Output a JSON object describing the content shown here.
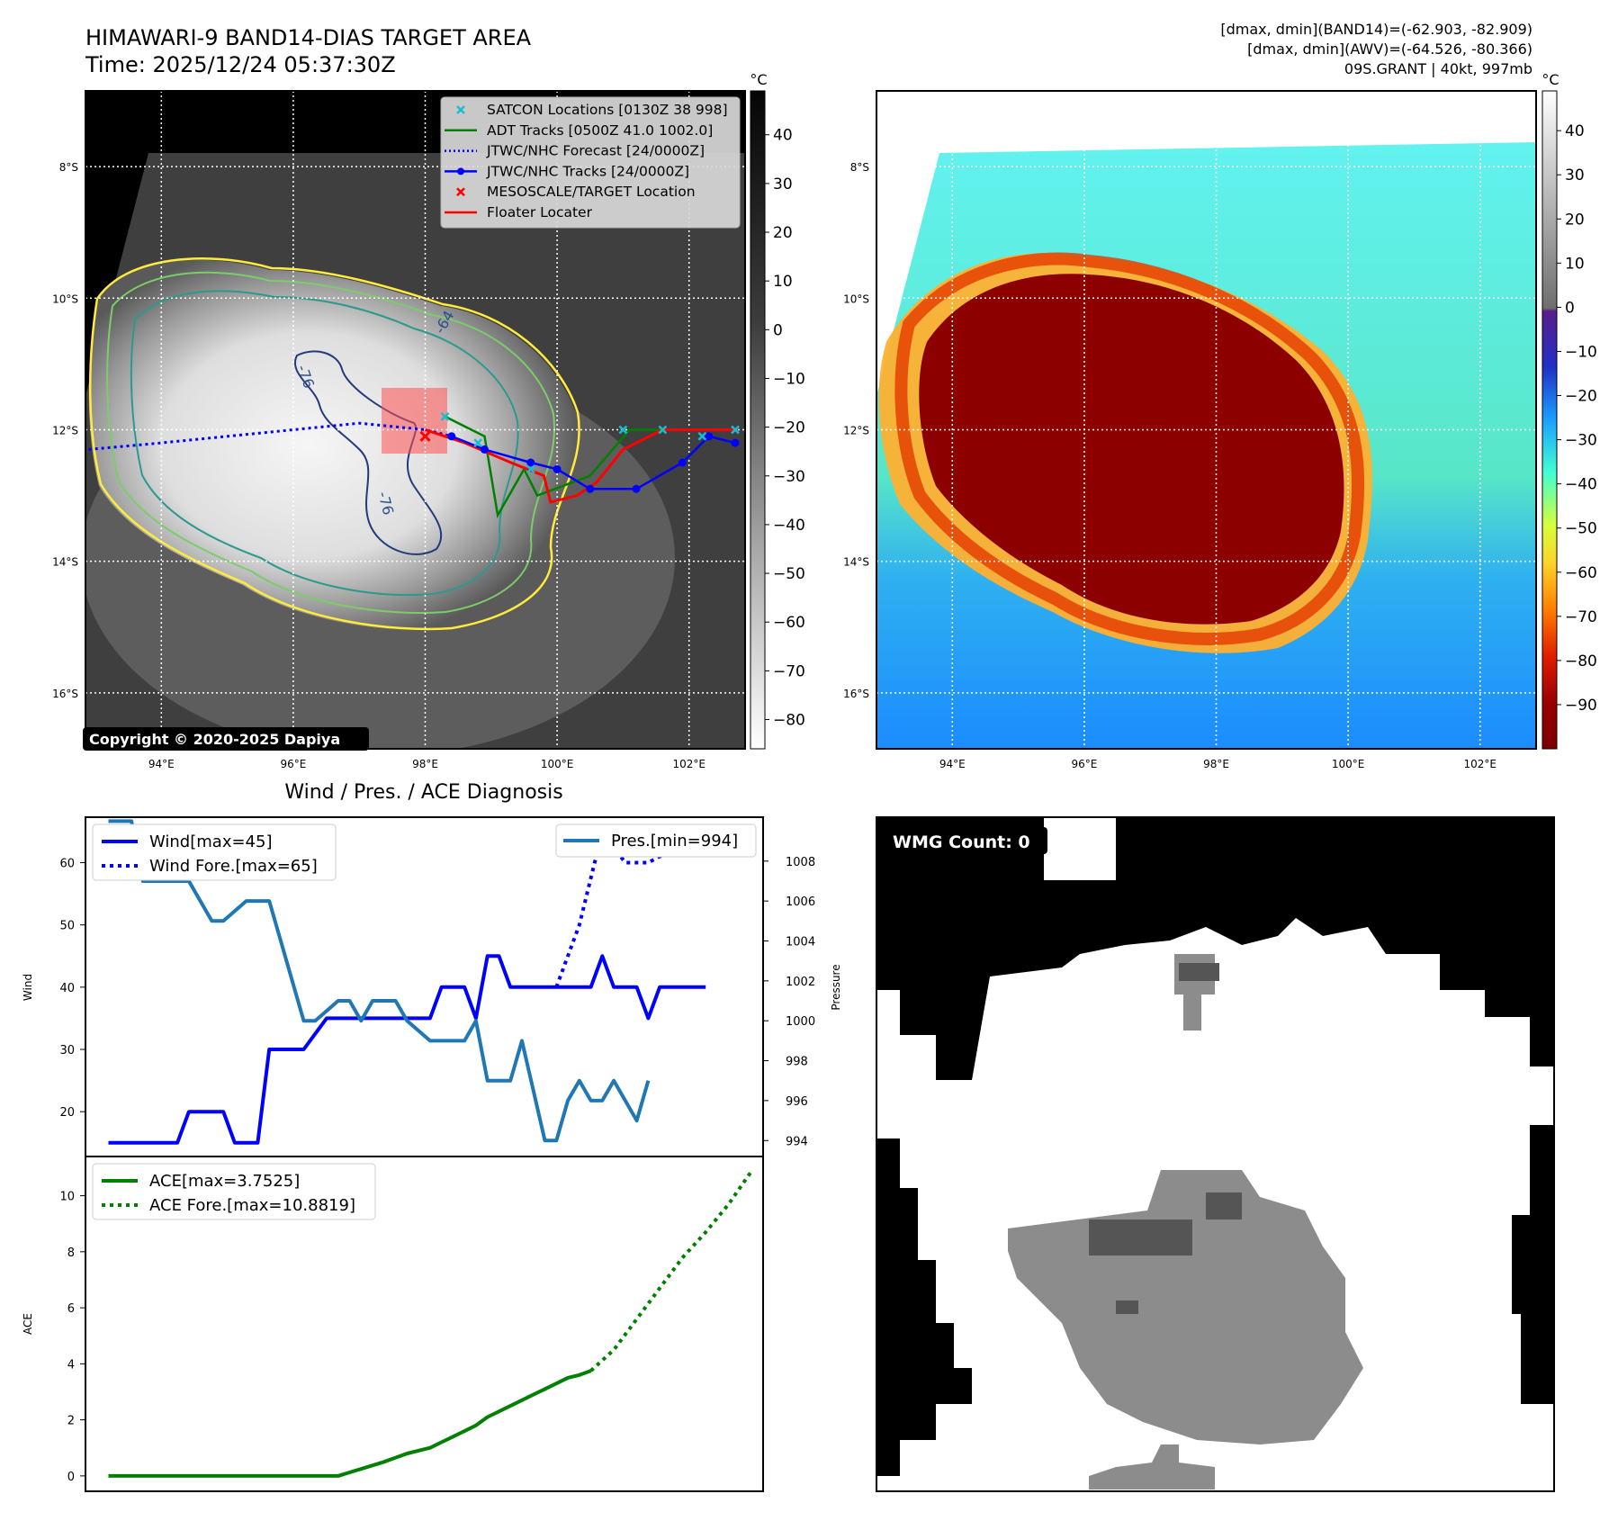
{
  "header": {
    "title": "HIMAWARI-9 BAND14-DIAS TARGET AREA",
    "time": "Time: 2025/12/24 05:37:30Z",
    "stat1": "[dmax, dmin](BAND14)=(-62.903, -82.909)",
    "stat2": "[dmax, dmin](AWV)=(-64.526, -80.366)",
    "storm": "09S.GRANT | 40kt, 997mb"
  },
  "copyright": "Copyright © 2020-2025 Dapiya",
  "map": {
    "lat_labels": [
      "8°S",
      "10°S",
      "12°S",
      "14°S",
      "16°S"
    ],
    "lon_labels": [
      "94°E",
      "96°E",
      "98°E",
      "100°E",
      "102°E"
    ],
    "lat_values": [
      -8,
      -10,
      -12,
      -14,
      -16
    ],
    "lon_values": [
      94,
      96,
      98,
      100,
      102
    ],
    "lon_range": [
      92.85,
      102.85
    ],
    "lat_range": [
      -6.85,
      -16.85
    ],
    "contour_labels": [
      "-64",
      "-76",
      "-76"
    ]
  },
  "legend": {
    "entries": [
      {
        "label": "SATCON Locations [0130Z 38 998]",
        "color": "#17becf",
        "marker": "x"
      },
      {
        "label": "ADT Tracks [0500Z 41.0 1002.0]",
        "color": "#008000",
        "marker": "line"
      },
      {
        "label": "JTWC/NHC Forecast [24/0000Z]",
        "color": "#0000ff",
        "marker": "dotted"
      },
      {
        "label": "JTWC/NHC Tracks [24/0000Z]",
        "color": "#0000ff",
        "marker": "line-dot"
      },
      {
        "label": "MESOSCALE/TARGET Location",
        "color": "#ff0000",
        "marker": "x"
      },
      {
        "label": "Floater Locater",
        "color": "#ff0000",
        "marker": "line"
      }
    ]
  },
  "colorbar1": {
    "unit": "°C",
    "ticks": [
      "40",
      "30",
      "20",
      "10",
      "0",
      "−10",
      "−20",
      "−30",
      "−40",
      "−50",
      "−60",
      "−70",
      "−80"
    ],
    "tick_values": [
      40,
      30,
      20,
      10,
      0,
      -10,
      -20,
      -30,
      -40,
      -50,
      -60,
      -70,
      -80
    ],
    "range": [
      49,
      -86
    ]
  },
  "colorbar2": {
    "unit": "°C",
    "ticks": [
      "40",
      "30",
      "20",
      "10",
      "0",
      "−10",
      "−20",
      "−30",
      "−40",
      "−50",
      "−60",
      "−70",
      "−80",
      "−90"
    ],
    "tick_values": [
      40,
      30,
      20,
      10,
      0,
      -10,
      -20,
      -30,
      -40,
      -50,
      -60,
      -70,
      -80,
      -90
    ],
    "range": [
      49,
      -100
    ]
  },
  "track": {
    "jtwc_forecast": [
      [
        92.9,
        -12.3
      ],
      [
        94,
        -12.2
      ],
      [
        95,
        -12.1
      ],
      [
        96,
        -12.0
      ],
      [
        97,
        -11.9
      ],
      [
        98,
        -12.0
      ],
      [
        98.4,
        -12.1
      ]
    ],
    "jtwc_track": [
      [
        98.4,
        -12.1
      ],
      [
        98.9,
        -12.3
      ],
      [
        99.6,
        -12.5
      ],
      [
        100.0,
        -12.6
      ],
      [
        100.5,
        -12.9
      ],
      [
        101.2,
        -12.9
      ],
      [
        101.9,
        -12.5
      ],
      [
        102.3,
        -12.1
      ],
      [
        102.7,
        -12.2
      ]
    ],
    "floater": [
      [
        98.0,
        -12.0
      ],
      [
        98.6,
        -12.2
      ],
      [
        99.3,
        -12.5
      ],
      [
        99.8,
        -12.7
      ],
      [
        99.9,
        -13.1
      ],
      [
        100.3,
        -13.0
      ],
      [
        100.6,
        -12.8
      ],
      [
        101.0,
        -12.3
      ],
      [
        101.6,
        -12.0
      ],
      [
        102.2,
        -12.0
      ],
      [
        102.7,
        -12.0
      ]
    ],
    "adt": [
      [
        98.3,
        -11.8
      ],
      [
        98.9,
        -12.1
      ],
      [
        99.1,
        -13.3
      ],
      [
        99.5,
        -12.6
      ],
      [
        99.7,
        -13.0
      ],
      [
        100.5,
        -12.7
      ],
      [
        101.1,
        -12.0
      ],
      [
        101.9,
        -12.0
      ],
      [
        102.7,
        -12.0
      ]
    ],
    "satcon": [
      [
        98.3,
        -11.8
      ],
      [
        98.8,
        -12.2
      ],
      [
        99.6,
        -12.6
      ],
      [
        101.0,
        -12.0
      ],
      [
        101.6,
        -12.0
      ],
      [
        102.2,
        -12.1
      ],
      [
        102.7,
        -12.0
      ]
    ],
    "target": [
      98.0,
      -12.1
    ]
  },
  "diag": {
    "title": "Wind / Pres. / ACE Diagnosis",
    "wind_axis_label": "Wind",
    "pres_axis_label": "Pressure",
    "ace_axis_label": "ACE",
    "wind_legend": [
      "Wind[max=45]",
      "Wind Fore.[max=65]"
    ],
    "pres_legend": "Pres.[min=994]",
    "ace_legend": [
      "ACE[max=3.7525]",
      "ACE Fore.[max=10.8819]"
    ]
  },
  "wmg": {
    "label": "WMG Count: 0"
  },
  "chart_data": [
    {
      "type": "line",
      "title": "Wind / Pres. / ACE Diagnosis",
      "ylabel": "Wind",
      "ylim": [
        12.8,
        67.3
      ],
      "xlim": [
        -2,
        57
      ],
      "yticks": [
        20,
        30,
        40,
        50,
        60
      ],
      "series": [
        {
          "name": "Wind[max=45]",
          "x": [
            0,
            6,
            7,
            10,
            11,
            13,
            14,
            16,
            17,
            19,
            20,
            21,
            22,
            23,
            24,
            25,
            26,
            27,
            28,
            29,
            30,
            31,
            32,
            33,
            34,
            35,
            36,
            37,
            38,
            39,
            40,
            41,
            42,
            43,
            44,
            45,
            46,
            47,
            48,
            49,
            50,
            51,
            52
          ],
          "y": [
            15,
            15,
            20,
            20,
            15,
            15,
            30,
            30,
            30,
            35,
            35,
            35,
            35,
            35,
            35,
            35,
            35,
            35,
            35,
            40,
            40,
            40,
            35,
            45,
            45,
            40,
            40,
            40,
            40,
            40,
            40,
            40,
            40,
            45,
            40,
            40,
            40,
            35,
            40,
            40,
            40,
            40,
            40
          ]
        },
        {
          "name": "Wind Fore.[max=65]",
          "style": "dotted",
          "x": [
            39,
            41,
            43,
            45,
            47,
            49
          ],
          "y": [
            40,
            50,
            65,
            60,
            60,
            62
          ]
        },
        {
          "name": "Pres.[min=994]",
          "axis": "right",
          "x": [
            0,
            2,
            3,
            7,
            9,
            10,
            12,
            14,
            15,
            17,
            18,
            20,
            21,
            22,
            23,
            25,
            26,
            28,
            30,
            31,
            32,
            33,
            35,
            36,
            38,
            39,
            40,
            41,
            42,
            43,
            44,
            46,
            47
          ],
          "y": [
            1010,
            1010,
            1007,
            1007,
            1005,
            1005,
            1006,
            1006,
            1004,
            1000,
            1000,
            1001,
            1001,
            1000,
            1001,
            1001,
            1000,
            999,
            999,
            999,
            1000,
            997,
            997,
            999,
            994,
            994,
            996,
            997,
            996,
            996,
            997,
            995,
            997
          ]
        }
      ],
      "y2label": "Pressure",
      "y2lim": [
        993.2,
        1010.2
      ],
      "y2ticks": [
        994,
        996,
        998,
        1000,
        1002,
        1004,
        1006,
        1008
      ]
    },
    {
      "type": "line",
      "ylabel": "ACE",
      "ylim": [
        -0.55,
        11.4
      ],
      "xlim": [
        -2,
        57
      ],
      "yticks": [
        0,
        2,
        4,
        6,
        8,
        10
      ],
      "series": [
        {
          "name": "ACE[max=3.7525]",
          "x": [
            0,
            5,
            10,
            15,
            18,
            20,
            24,
            26,
            28,
            29,
            30,
            31,
            32,
            33,
            35,
            37,
            38,
            39,
            40,
            41,
            42
          ],
          "y": [
            0,
            0,
            0,
            0,
            0,
            0,
            0.5,
            0.8,
            1.0,
            1.2,
            1.4,
            1.6,
            1.8,
            2.1,
            2.5,
            2.9,
            3.1,
            3.3,
            3.5,
            3.6,
            3.75
          ]
        },
        {
          "name": "ACE Fore.[max=10.8819]",
          "style": "dotted",
          "x": [
            42,
            44,
            46,
            48,
            50,
            52,
            54,
            56
          ],
          "y": [
            3.75,
            4.5,
            5.6,
            6.7,
            7.8,
            8.7,
            9.7,
            10.88
          ]
        }
      ]
    }
  ],
  "colors": {
    "wind": "#0000ff",
    "pres": "#1f77b4",
    "ace": "#008000",
    "legend_bg": "#d6d6d6",
    "wmg_gray": "#8c8c8c",
    "wmg_dark": "#555555"
  }
}
